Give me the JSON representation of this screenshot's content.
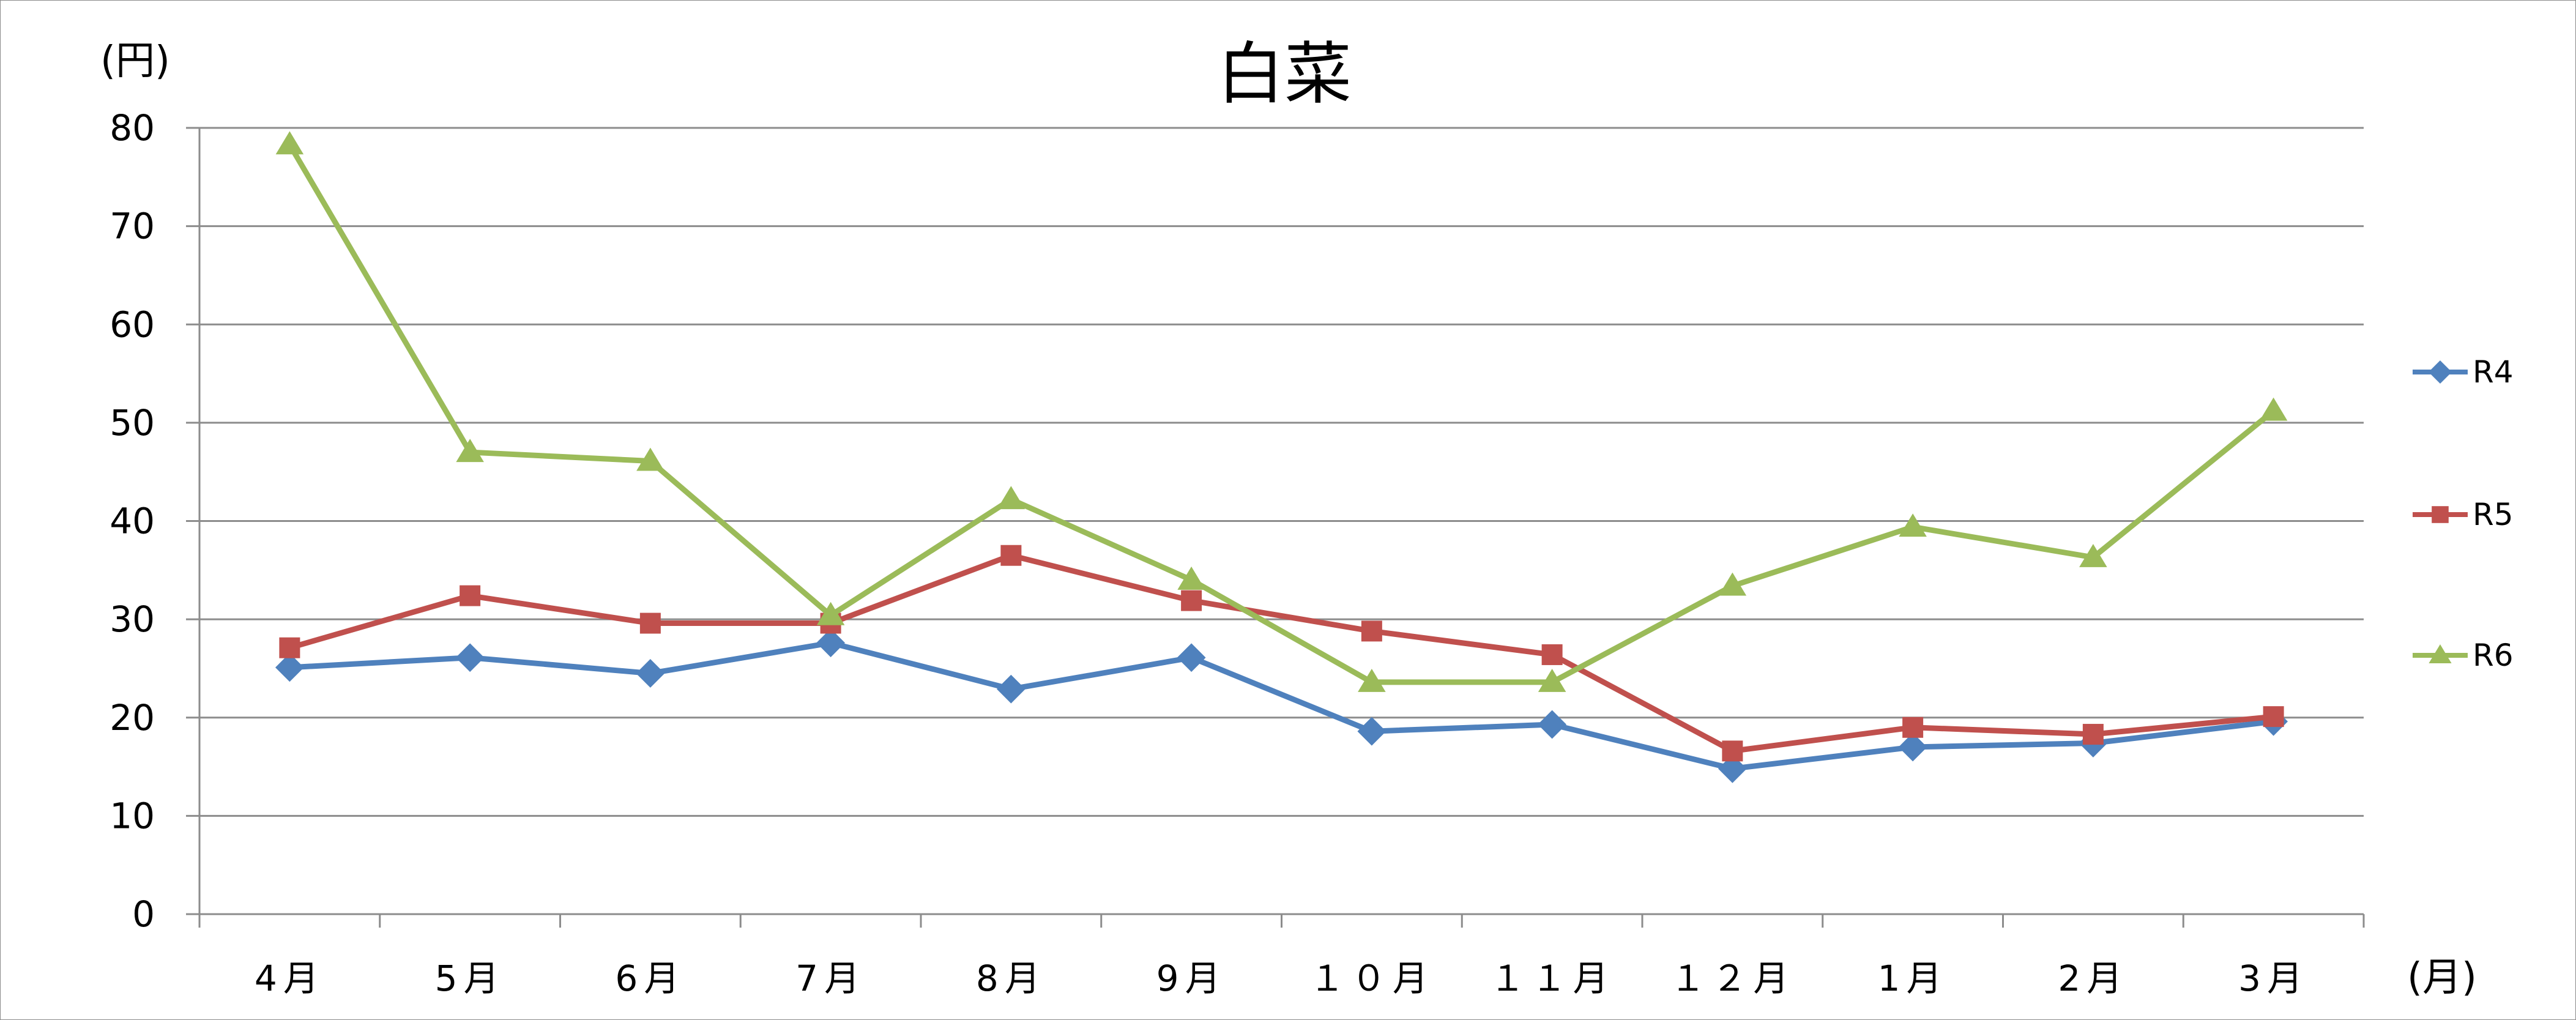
{
  "chart_data": {
    "type": "line",
    "title": "白菜",
    "ylabel": "(円)",
    "xlabel": "(月)",
    "categories": [
      "4月",
      "5月",
      "6月",
      "7月",
      "8月",
      "9月",
      "１０月",
      "１１月",
      "１２月",
      "1月",
      "2月",
      "3月"
    ],
    "ylim": [
      0,
      80
    ],
    "yticks": [
      0,
      10,
      20,
      30,
      40,
      50,
      60,
      70,
      80
    ],
    "grid": true,
    "legend_position": "right",
    "series": [
      {
        "name": "R4",
        "color": "#4F81BD",
        "marker": "diamond",
        "values": [
          25.1,
          26.1,
          24.5,
          27.6,
          22.9,
          26.1,
          18.6,
          19.3,
          14.8,
          17.0,
          17.4,
          19.6
        ]
      },
      {
        "name": "R5",
        "color": "#C0504D",
        "marker": "square",
        "values": [
          27.1,
          32.4,
          29.6,
          29.6,
          36.5,
          31.9,
          28.8,
          26.4,
          16.6,
          19.0,
          18.3,
          20.1
        ]
      },
      {
        "name": "R6",
        "color": "#9BBB59",
        "marker": "triangle",
        "values": [
          78.3,
          47.0,
          46.1,
          30.4,
          42.2,
          34.0,
          23.6,
          23.6,
          33.4,
          39.4,
          36.3,
          51.2
        ]
      }
    ]
  }
}
